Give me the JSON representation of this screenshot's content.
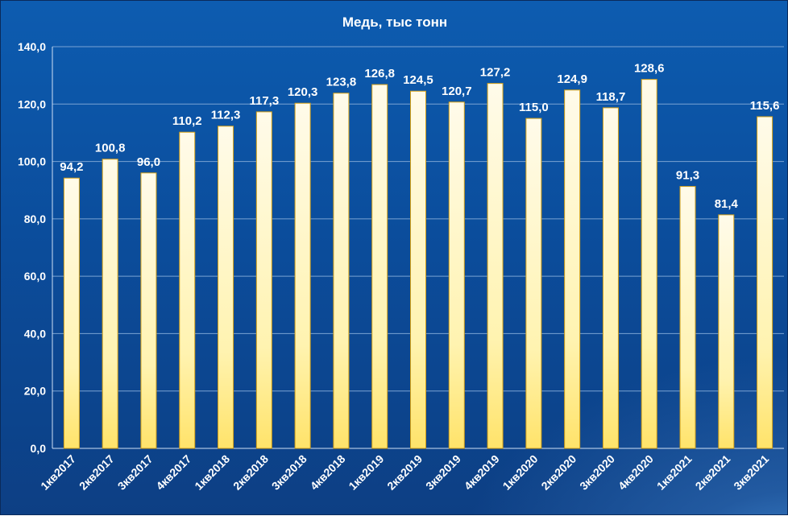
{
  "chart_data": {
    "type": "bar",
    "title": "Медь, тыс тонн",
    "xlabel": "",
    "ylabel": "",
    "ylim": [
      0,
      140
    ],
    "yticks": [
      "0,0",
      "20,0",
      "40,0",
      "60,0",
      "80,0",
      "100,0",
      "120,0",
      "140,0"
    ],
    "grid": true,
    "legend": "none",
    "categories": [
      "1кв2017",
      "2кв2017",
      "3кв2017",
      "4кв2017",
      "1кв2018",
      "2кв2018",
      "3кв2018",
      "4кв2018",
      "1кв2019",
      "2кв2019",
      "3кв2019",
      "4кв2019",
      "1кв2020",
      "2кв2020",
      "3кв2020",
      "4кв2020",
      "1кв2021",
      "2кв2021",
      "3кв2021"
    ],
    "values": [
      94.2,
      100.8,
      96.0,
      110.2,
      112.3,
      117.3,
      120.3,
      123.8,
      126.8,
      124.5,
      120.7,
      127.2,
      115.0,
      124.9,
      118.7,
      128.6,
      91.3,
      81.4,
      115.6
    ],
    "value_labels": [
      "94,2",
      "100,8",
      "96,0",
      "110,2",
      "112,3",
      "117,3",
      "120,3",
      "123,8",
      "126,8",
      "124,5",
      "120,7",
      "127,2",
      "115,0",
      "124,9",
      "118,7",
      "128,6",
      "91,3",
      "81,4",
      "115,6"
    ]
  },
  "colors": {
    "bar_top": "#fffbea",
    "bar_bottom": "#ffe36a",
    "bar_stroke": "#d4a017",
    "text": "#ffffff",
    "grid": "#7aa3d3"
  }
}
